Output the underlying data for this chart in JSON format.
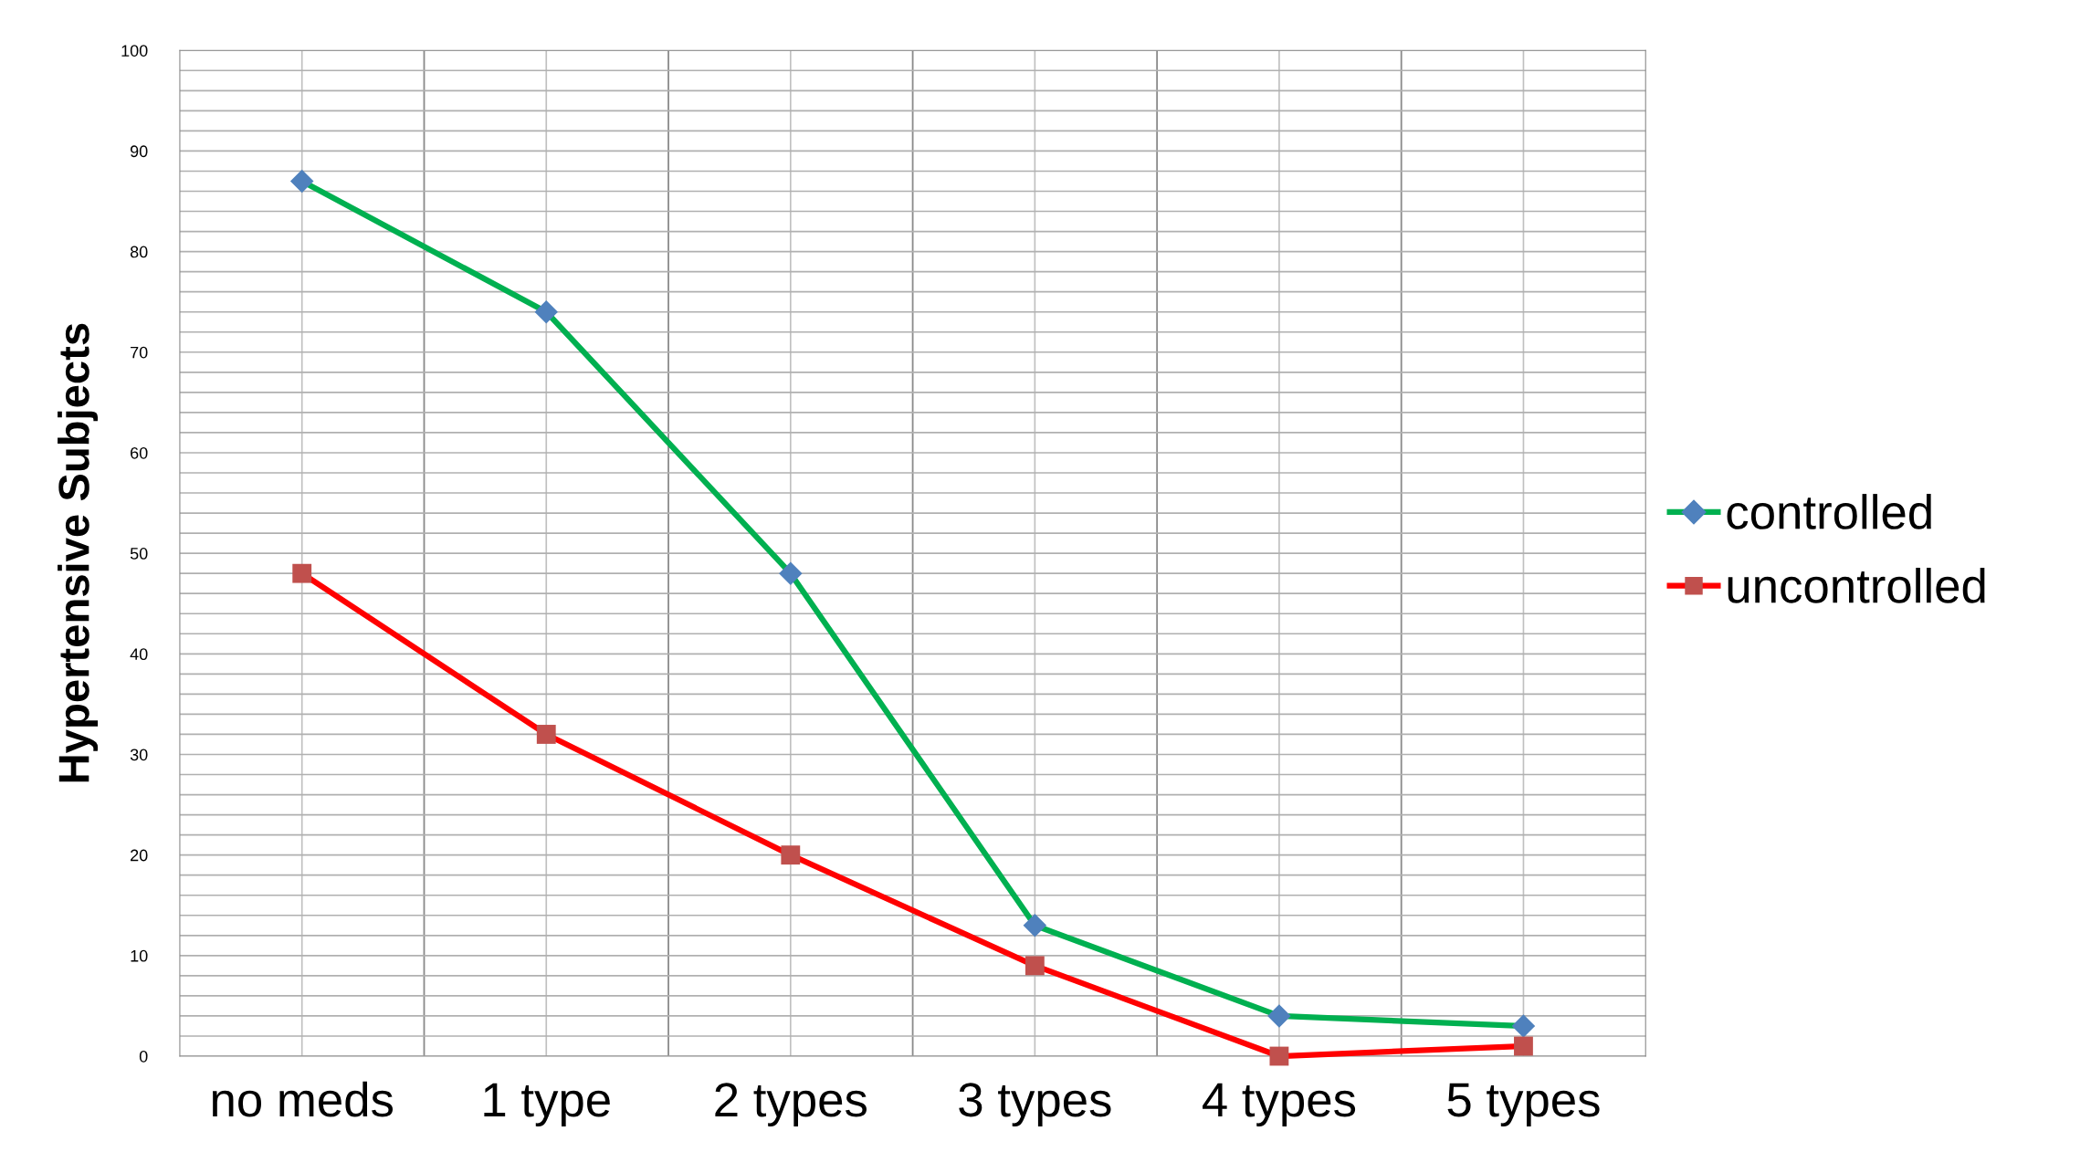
{
  "chart_data": {
    "type": "line",
    "ylabel": "Hypertensive Subjects",
    "categories": [
      "no meds",
      "1 type",
      "2 types",
      "3 types",
      "4 types",
      "5 types"
    ],
    "series": [
      {
        "name": "controlled",
        "color": "#00b050",
        "values": [
          87,
          74,
          48,
          13,
          4,
          3
        ],
        "marker": "diamond",
        "colors": [
          "#4f81bd",
          "#4f81bd",
          "#4f81bd",
          "#4f81bd",
          "#4f81bd",
          "#4f81bd"
        ]
      },
      {
        "name": "uncontrolled",
        "color": "#ff0000",
        "values": [
          48,
          32,
          20,
          9,
          0,
          1
        ],
        "marker": "square",
        "colors": [
          "#c0504d",
          "#c0504d",
          "#c0504d",
          "#c0504d",
          "#c0504d",
          "#c0504d"
        ]
      }
    ],
    "ylim": [
      0,
      100
    ],
    "yticks": [
      0,
      {
        "value": 2,
        "label": null
      },
      {
        "value": 4,
        "label": null
      },
      {
        "value": 6,
        "label": null
      },
      {
        "value": 8,
        "label": null
      },
      10,
      {
        "value": 12,
        "label": null
      },
      {
        "value": 14,
        "label": null
      },
      {
        "value": 16,
        "label": null
      },
      {
        "value": 18,
        "label": null
      },
      20,
      {
        "value": 22,
        "label": null
      },
      {
        "value": 24,
        "label": null
      },
      {
        "value": 26,
        "label": null
      },
      {
        "value": 28,
        "label": null
      },
      30,
      {
        "value": 32,
        "label": null
      },
      {
        "value": 34,
        "label": null
      },
      {
        "value": 36,
        "label": null
      },
      {
        "value": 38,
        "label": null
      },
      40,
      {
        "value": 42,
        "label": null
      },
      {
        "value": 44,
        "label": null
      },
      {
        "value": 46,
        "label": null
      },
      {
        "value": 48,
        "label": null
      },
      50,
      {
        "value": 52,
        "label": null
      },
      {
        "value": 54,
        "label": null
      },
      {
        "value": 56,
        "label": null
      },
      {
        "value": 58,
        "label": null
      },
      60,
      {
        "value": 62,
        "label": null
      },
      {
        "value": 64,
        "label": null
      },
      {
        "value": 66,
        "label": null
      },
      {
        "value": 68,
        "label": null
      },
      70,
      {
        "value": 72,
        "label": null
      },
      {
        "value": 74,
        "label": null
      },
      {
        "value": 76,
        "label": null
      },
      {
        "value": 78,
        "label": null
      },
      80,
      {
        "value": 82,
        "label": null
      },
      {
        "value": 84,
        "label": null
      },
      {
        "value": 86,
        "label": null
      },
      {
        "value": 88,
        "label": null
      },
      90,
      {
        "value": 92,
        "label": null
      },
      {
        "value": 94,
        "label": null
      },
      {
        "value": 96,
        "label": null
      },
      {
        "value": 98,
        "label": null
      },
      100
    ],
    "grid": true,
    "legend": "right",
    "line_style": "solid"
  }
}
